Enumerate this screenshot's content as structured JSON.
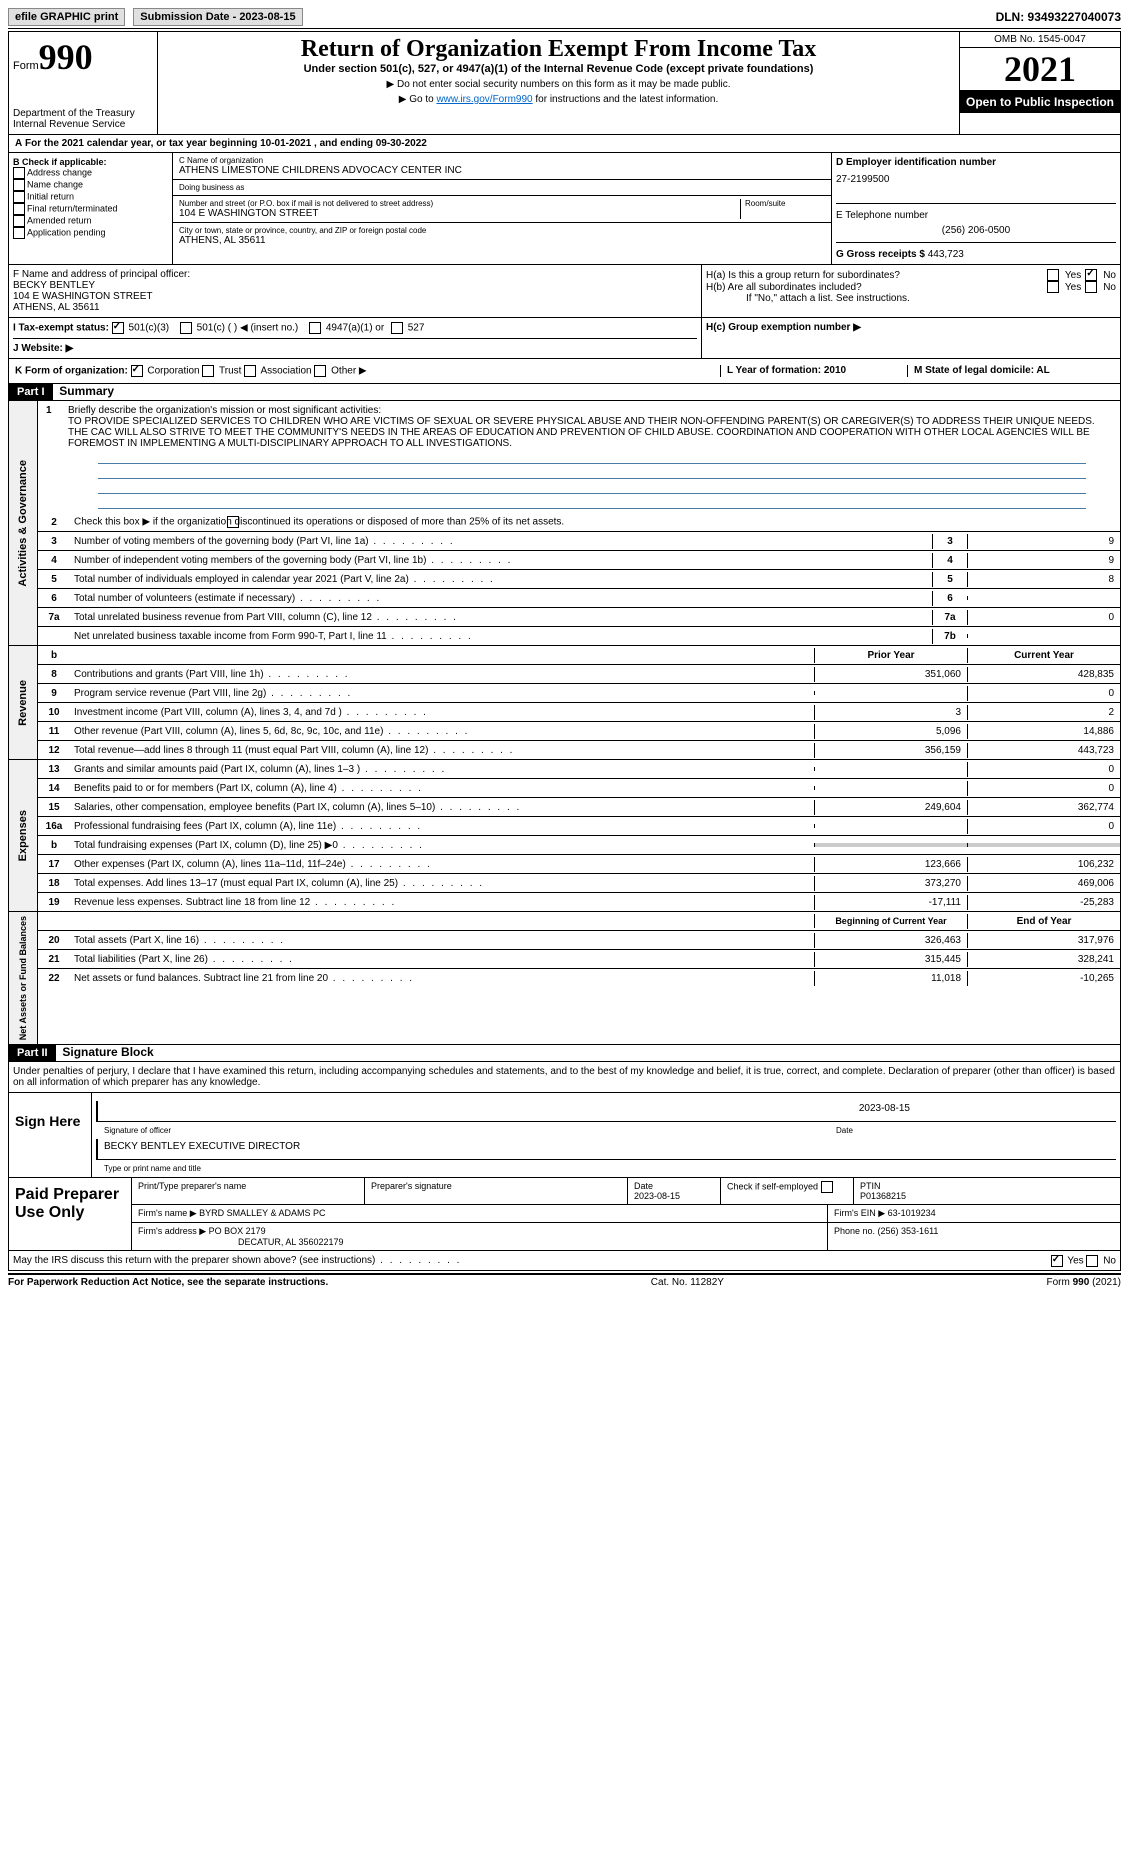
{
  "topbar": {
    "efile": "efile GRAPHIC print",
    "submission": "Submission Date - 2023-08-15",
    "dln": "DLN: 93493227040073"
  },
  "header": {
    "form": "Form",
    "num": "990",
    "dept": "Department of the Treasury",
    "irs": "Internal Revenue Service",
    "title": "Return of Organization Exempt From Income Tax",
    "subtitle": "Under section 501(c), 527, or 4947(a)(1) of the Internal Revenue Code (except private foundations)",
    "note1": "▶ Do not enter social security numbers on this form as it may be made public.",
    "note2": "▶ Go to ",
    "link": "www.irs.gov/Form990",
    "note2b": " for instructions and the latest information.",
    "omb": "OMB No. 1545-0047",
    "year": "2021",
    "open": "Open to Public Inspection"
  },
  "a": {
    "text": "For the 2021 calendar year, or tax year beginning 10-01-2021     , and ending 09-30-2022"
  },
  "b": {
    "label": "B Check if applicable:",
    "items": [
      "Address change",
      "Name change",
      "Initial return",
      "Final return/terminated",
      "Amended return",
      "Application pending"
    ]
  },
  "c": {
    "name_lbl": "C Name of organization",
    "name": "ATHENS LIMESTONE CHILDRENS ADVOCACY CENTER INC",
    "dba_lbl": "Doing business as",
    "dba": "",
    "street_lbl": "Number and street (or P.O. box if mail is not delivered to street address)",
    "room_lbl": "Room/suite",
    "street": "104 E WASHINGTON STREET",
    "city_lbl": "City or town, state or province, country, and ZIP or foreign postal code",
    "city": "ATHENS, AL  35611"
  },
  "d": {
    "lbl": "D Employer identification number",
    "val": "27-2199500"
  },
  "e": {
    "lbl": "E Telephone number",
    "val": "(256) 206-0500"
  },
  "g": {
    "lbl": "G Gross receipts $",
    "val": "443,723"
  },
  "f": {
    "lbl": "F  Name and address of principal officer:",
    "name": "BECKY BENTLEY",
    "addr1": "104 E WASHINGTON STREET",
    "addr2": "ATHENS, AL  35611"
  },
  "h": {
    "a": "H(a)  Is this a group return for subordinates?",
    "b": "H(b)  Are all subordinates included?",
    "note": "If \"No,\" attach a list. See instructions.",
    "c": "H(c)  Group exemption number ▶",
    "yes": "Yes",
    "no": "No"
  },
  "i": {
    "lbl": "I    Tax-exempt status:",
    "c3": "501(c)(3)",
    "c": "501(c) (   ) ◀ (insert no.)",
    "a1": "4947(a)(1) or",
    "s527": "527"
  },
  "j": {
    "lbl": "J    Website: ▶"
  },
  "k": {
    "lbl": "K Form of organization:",
    "corp": "Corporation",
    "trust": "Trust",
    "assoc": "Association",
    "other": "Other ▶"
  },
  "l": {
    "lbl": "L Year of formation: 2010"
  },
  "m": {
    "lbl": "M State of legal domicile: AL"
  },
  "part1": {
    "num": "Part I",
    "title": "Summary"
  },
  "summary": {
    "q1": "Briefly describe the organization's mission or most significant activities:",
    "mission": "TO PROVIDE SPECIALIZED SERVICES TO CHILDREN WHO ARE VICTIMS OF SEXUAL OR SEVERE PHYSICAL ABUSE AND THEIR NON-OFFENDING PARENT(S) OR CAREGIVER(S) TO ADDRESS THEIR UNIQUE NEEDS. THE CAC WILL ALSO STRIVE TO MEET THE COMMUNITY'S NEEDS IN THE AREAS OF EDUCATION AND PREVENTION OF CHILD ABUSE. COORDINATION AND COOPERATION WITH OTHER LOCAL AGENCIES WILL BE FOREMOST IN IMPLEMENTING A MULTI-DISCIPLINARY APPROACH TO ALL INVESTIGATIONS.",
    "q2": "Check this box ▶       if the organization discontinued its operations or disposed of more than 25% of its net assets.",
    "gov": [
      {
        "n": "3",
        "t": "Number of voting members of the governing body (Part VI, line 1a)",
        "b": "3",
        "v": "9"
      },
      {
        "n": "4",
        "t": "Number of independent voting members of the governing body (Part VI, line 1b)",
        "b": "4",
        "v": "9"
      },
      {
        "n": "5",
        "t": "Total number of individuals employed in calendar year 2021 (Part V, line 2a)",
        "b": "5",
        "v": "8"
      },
      {
        "n": "6",
        "t": "Total number of volunteers (estimate if necessary)",
        "b": "6",
        "v": ""
      },
      {
        "n": "7a",
        "t": "Total unrelated business revenue from Part VIII, column (C), line 12",
        "b": "7a",
        "v": "0"
      },
      {
        "n": "",
        "t": "Net unrelated business taxable income from Form 990-T, Part I, line 11",
        "b": "7b",
        "v": ""
      }
    ],
    "hdr_prior": "Prior Year",
    "hdr_curr": "Current Year",
    "rev": [
      {
        "n": "8",
        "t": "Contributions and grants (Part VIII, line 1h)",
        "p": "351,060",
        "c": "428,835"
      },
      {
        "n": "9",
        "t": "Program service revenue (Part VIII, line 2g)",
        "p": "",
        "c": "0"
      },
      {
        "n": "10",
        "t": "Investment income (Part VIII, column (A), lines 3, 4, and 7d )",
        "p": "3",
        "c": "2"
      },
      {
        "n": "11",
        "t": "Other revenue (Part VIII, column (A), lines 5, 6d, 8c, 9c, 10c, and 11e)",
        "p": "5,096",
        "c": "14,886"
      },
      {
        "n": "12",
        "t": "Total revenue—add lines 8 through 11 (must equal Part VIII, column (A), line 12)",
        "p": "356,159",
        "c": "443,723"
      }
    ],
    "exp": [
      {
        "n": "13",
        "t": "Grants and similar amounts paid (Part IX, column (A), lines 1–3 )",
        "p": "",
        "c": "0"
      },
      {
        "n": "14",
        "t": "Benefits paid to or for members (Part IX, column (A), line 4)",
        "p": "",
        "c": "0"
      },
      {
        "n": "15",
        "t": "Salaries, other compensation, employee benefits (Part IX, column (A), lines 5–10)",
        "p": "249,604",
        "c": "362,774"
      },
      {
        "n": "16a",
        "t": "Professional fundraising fees (Part IX, column (A), line 11e)",
        "p": "",
        "c": "0"
      },
      {
        "n": "b",
        "t": "Total fundraising expenses (Part IX, column (D), line 25) ▶0",
        "p": "shaded",
        "c": "shaded"
      },
      {
        "n": "17",
        "t": "Other expenses (Part IX, column (A), lines 11a–11d, 11f–24e)",
        "p": "123,666",
        "c": "106,232"
      },
      {
        "n": "18",
        "t": "Total expenses. Add lines 13–17 (must equal Part IX, column (A), line 25)",
        "p": "373,270",
        "c": "469,006"
      },
      {
        "n": "19",
        "t": "Revenue less expenses. Subtract line 18 from line 12",
        "p": "-17,111",
        "c": "-25,283"
      }
    ],
    "hdr_beg": "Beginning of Current Year",
    "hdr_end": "End of Year",
    "net": [
      {
        "n": "20",
        "t": "Total assets (Part X, line 16)",
        "p": "326,463",
        "c": "317,976"
      },
      {
        "n": "21",
        "t": "Total liabilities (Part X, line 26)",
        "p": "315,445",
        "c": "328,241"
      },
      {
        "n": "22",
        "t": "Net assets or fund balances. Subtract line 21 from line 20",
        "p": "11,018",
        "c": "-10,265"
      }
    ],
    "sec_gov": "Activities & Governance",
    "sec_rev": "Revenue",
    "sec_exp": "Expenses",
    "sec_net": "Net Assets or Fund Balances"
  },
  "part2": {
    "num": "Part II",
    "title": "Signature Block",
    "decl": "Under penalties of perjury, I declare that I have examined this return, including accompanying schedules and statements, and to the best of my knowledge and belief, it is true, correct, and complete. Declaration of preparer (other than officer) is based on all information of which preparer has any knowledge."
  },
  "sign": {
    "here": "Sign Here",
    "sig_lbl": "Signature of officer",
    "date_lbl": "Date",
    "date": "2023-08-15",
    "name": "BECKY BENTLEY EXECUTIVE DIRECTOR",
    "name_lbl": "Type or print name and title"
  },
  "prep": {
    "label": "Paid Preparer Use Only",
    "r1": {
      "c1": "Print/Type preparer's name",
      "c2": "Preparer's signature",
      "c3": "Date",
      "c3v": "2023-08-15",
      "c4": "Check          if self-employed",
      "c5": "PTIN",
      "c5v": "P01368215"
    },
    "r2": {
      "c1": "Firm's name      ▶ BYRD SMALLEY & ADAMS PC",
      "c2": "Firm's EIN ▶ 63-1019234"
    },
    "r3": {
      "c1": "Firm's address ▶ PO BOX 2179",
      "c1b": "DECATUR, AL  356022179",
      "c2": "Phone no. (256) 353-1611"
    }
  },
  "discuss": {
    "q": "May the IRS discuss this return with the preparer shown above? (see instructions)",
    "yes": "Yes",
    "no": "No"
  },
  "footer": {
    "left": "For Paperwork Reduction Act Notice, see the separate instructions.",
    "mid": "Cat. No. 11282Y",
    "right": "Form 990 (2021)"
  }
}
